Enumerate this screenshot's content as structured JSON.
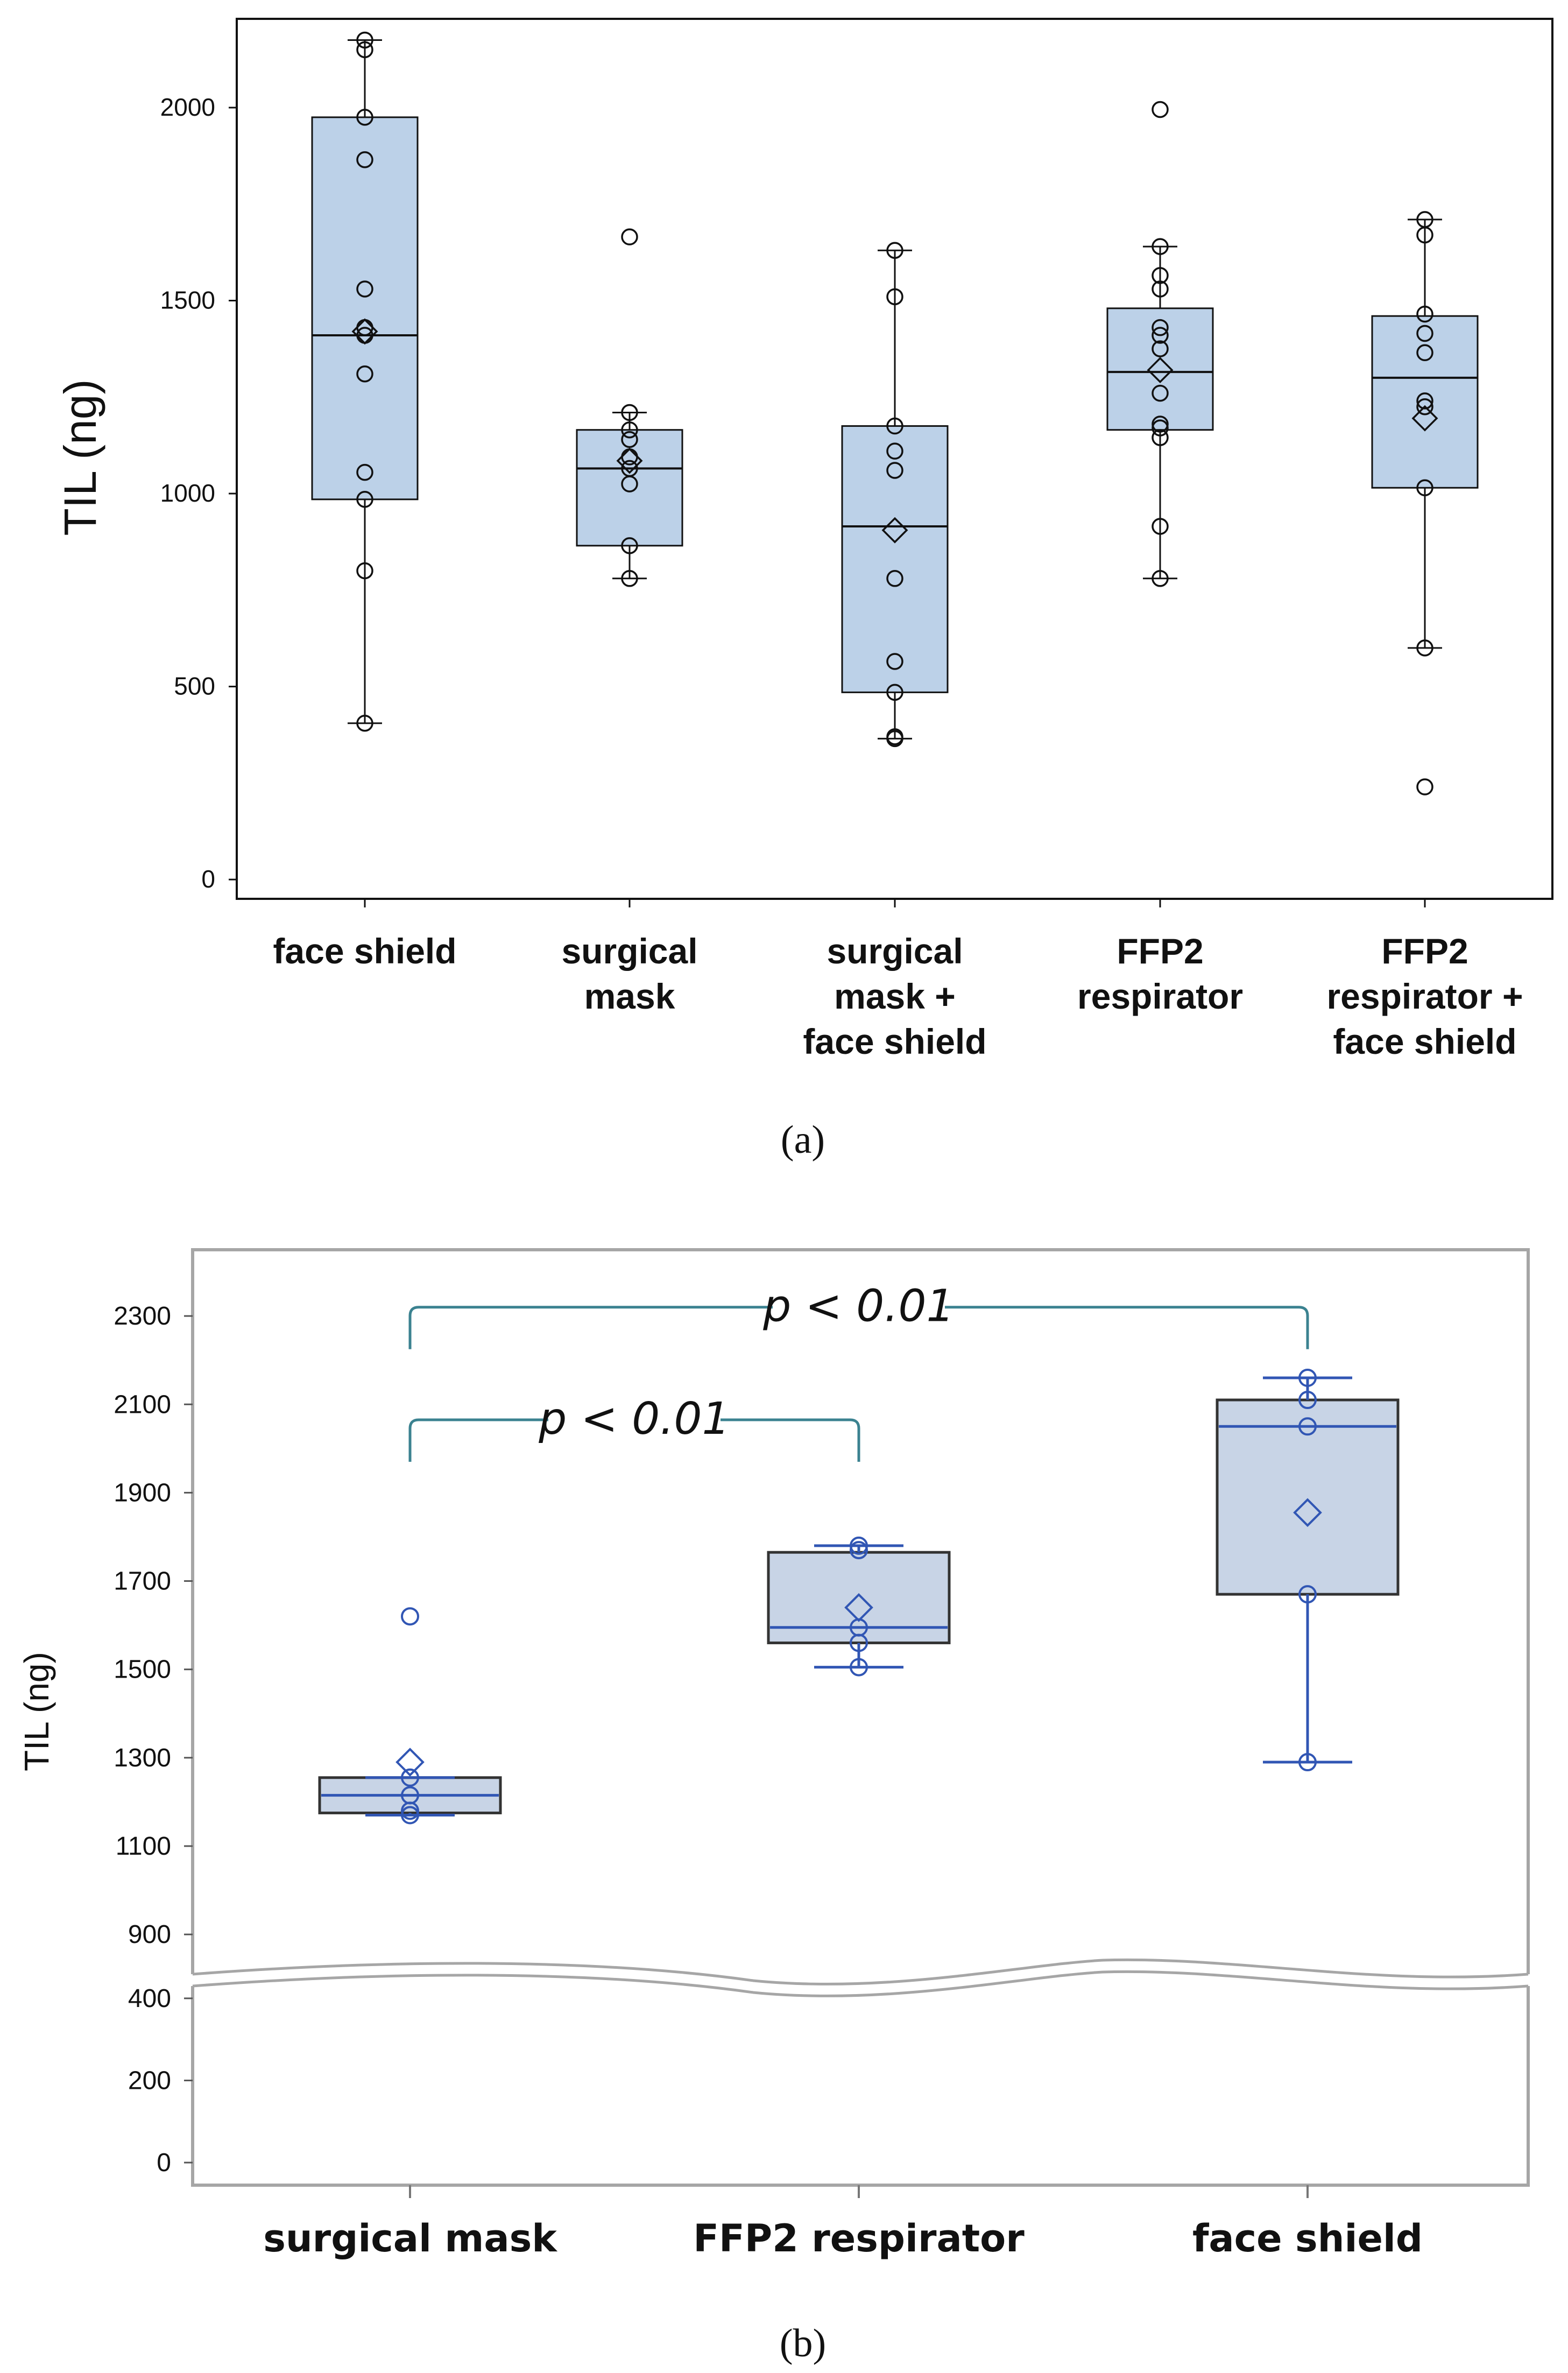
{
  "chart_data": [
    {
      "panel": "a",
      "type": "box",
      "ylabel": "TIL (ng)",
      "yticks": [
        0,
        500,
        1000,
        1500,
        2000
      ],
      "ylim": [
        -50,
        2230
      ],
      "categories": [
        [
          "face shield"
        ],
        [
          "surgical",
          "mask"
        ],
        [
          "surgical",
          "mask +",
          "face shield"
        ],
        [
          "FFP2",
          "respirator"
        ],
        [
          "FFP2",
          "respirator +",
          "face shield"
        ]
      ],
      "boxes": [
        {
          "whisker_low": 405,
          "q1": 985,
          "median": 1410,
          "q3": 1975,
          "whisker_high": 2175,
          "mean": 1420,
          "points": [
            2175,
            2150,
            1975,
            1865,
            1530,
            1430,
            1410,
            1310,
            1055,
            985,
            800,
            405
          ]
        },
        {
          "whisker_low": 780,
          "q1": 865,
          "median": 1065,
          "q3": 1165,
          "whisker_high": 1210,
          "mean": 1085,
          "points": [
            1665,
            1210,
            1165,
            1140,
            1095,
            1065,
            1025,
            865,
            780
          ]
        },
        {
          "whisker_low": 365,
          "q1": 485,
          "median": 915,
          "q3": 1175,
          "whisker_high": 1630,
          "mean": 905,
          "points": [
            1630,
            1510,
            1175,
            1110,
            1060,
            780,
            565,
            485,
            370,
            365
          ]
        },
        {
          "whisker_low": 780,
          "q1": 1165,
          "median": 1315,
          "q3": 1480,
          "whisker_high": 1640,
          "mean": 1320,
          "points": [
            1995,
            1640,
            1565,
            1530,
            1430,
            1410,
            1375,
            1260,
            1180,
            1170,
            1145,
            915,
            780
          ]
        },
        {
          "whisker_low": 600,
          "q1": 1015,
          "median": 1300,
          "q3": 1460,
          "whisker_high": 1710,
          "mean": 1195,
          "points": [
            1710,
            1670,
            1465,
            1415,
            1365,
            1240,
            1225,
            1015,
            600,
            240
          ]
        }
      ],
      "caption": "(a)"
    },
    {
      "panel": "b",
      "type": "box",
      "ylabel": "TIL (ng)",
      "yticks_upper": [
        900,
        1100,
        1300,
        1500,
        1700,
        1900,
        2100,
        2300
      ],
      "yticks_lower": [
        0,
        200,
        400
      ],
      "ylim_upper": [
        810,
        2450
      ],
      "ylim_lower": [
        -55,
        430
      ],
      "categories": [
        "surgical mask",
        "FFP2 respirator",
        "face shield"
      ],
      "boxes": [
        {
          "whisker_low": 1170,
          "q1": 1175,
          "median": 1215,
          "q3": 1255,
          "whisker_high": 1255,
          "mean": 1290,
          "points": [
            1620,
            1255,
            1215,
            1180,
            1170
          ]
        },
        {
          "whisker_low": 1505,
          "q1": 1560,
          "median": 1595,
          "q3": 1765,
          "whisker_high": 1780,
          "mean": 1640,
          "points": [
            1780,
            1770,
            1595,
            1560,
            1505
          ]
        },
        {
          "whisker_low": 1290,
          "q1": 1670,
          "median": 2050,
          "q3": 2110,
          "whisker_high": 2160,
          "mean": 1855,
          "points": [
            2160,
            2110,
            2050,
            1670,
            1290
          ]
        }
      ],
      "comparisons": [
        {
          "from": 0,
          "to": 2,
          "label": "p < 0.01",
          "level": 2320
        },
        {
          "from": 0,
          "to": 1,
          "label": "p < 0.01",
          "level": 2065
        }
      ],
      "caption": "(b)"
    }
  ],
  "colors": {
    "box_fill_a": "#bcd1e8",
    "box_fill_b": "#c8d4e6",
    "stroke_a": "#111111",
    "stroke_b": "#3156b4",
    "frame_b": "#a6a6a6",
    "bracket": "#3b8290"
  }
}
